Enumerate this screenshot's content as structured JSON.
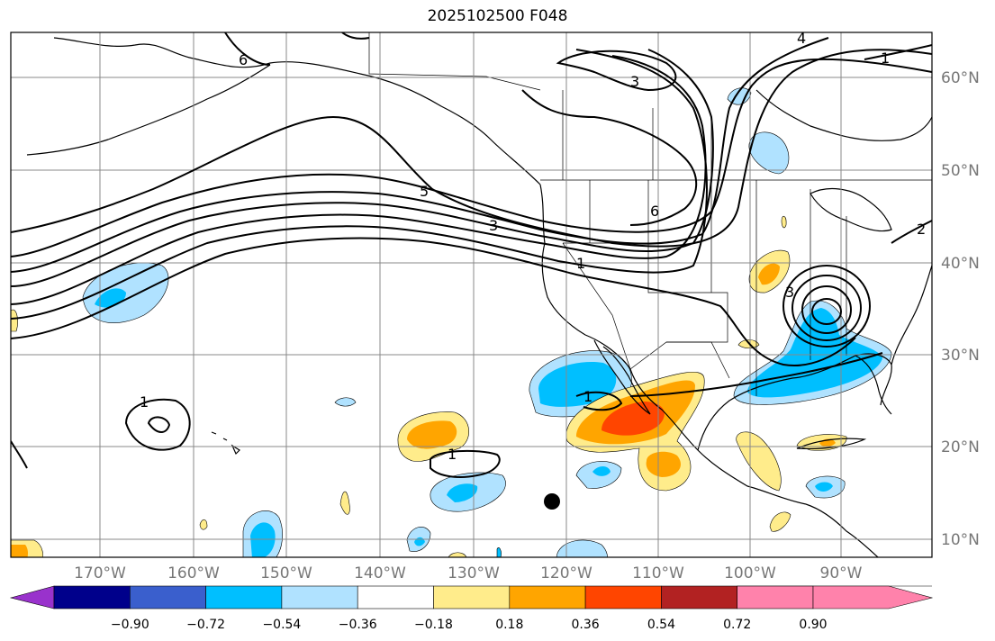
{
  "title": "2025102500 F048",
  "map": {
    "longitude_labels": [
      "170°W",
      "160°W",
      "150°W",
      "140°W",
      "130°W",
      "120°W",
      "110°W",
      "100°W",
      "90°W"
    ],
    "latitude_labels": [
      "60°N",
      "50°N",
      "40°N",
      "30°N",
      "20°N",
      "10°N"
    ],
    "contour_labels": [
      "6",
      "3",
      "4",
      "1",
      "5",
      "3",
      "6",
      "1",
      "1",
      "1",
      "3",
      "1",
      "2"
    ],
    "marker": "black-dot"
  },
  "colorbar": {
    "tick_labels": [
      "−0.90",
      "−0.72",
      "−0.54",
      "−0.36",
      "−0.18",
      "0.18",
      "0.36",
      "0.54",
      "0.72",
      "0.90"
    ],
    "colors": [
      "#9932cc",
      "#00008b",
      "#3a5fcd",
      "#00bfff",
      "#b0e2ff",
      "#ffffff",
      "#ffec8b",
      "#ffa500",
      "#ff4500",
      "#b22222",
      "#ff82ab"
    ]
  }
}
